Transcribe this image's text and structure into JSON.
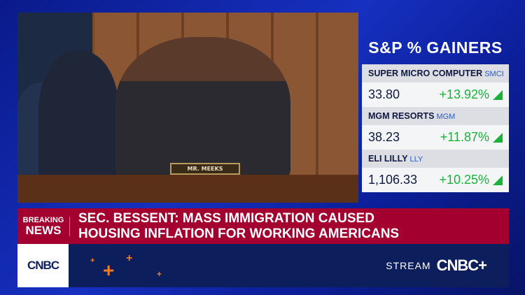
{
  "video": {
    "nameplate": "MR. MEEKS"
  },
  "gainers": {
    "title": "S&P % GAINERS",
    "items": [
      {
        "name": "SUPER MICRO COMPUTER",
        "ticker": "SMCI",
        "price": "33.80",
        "change": "+13.92%"
      },
      {
        "name": "MGM RESORTS",
        "ticker": "MGM",
        "price": "38.23",
        "change": "+11.87%"
      },
      {
        "name": "ELI LILLY",
        "ticker": "LLY",
        "price": "1,106.33",
        "change": "+10.25%"
      }
    ],
    "up_color": "#19b33a"
  },
  "breaking": {
    "label_top": "BREAKING",
    "label_bottom": "NEWS",
    "headline_line1": "SEC. BESSENT: MASS IMMIGRATION CAUSED",
    "headline_line2": "HOUSING INFLATION FOR WORKING AMERICANS",
    "color": "#a3002f"
  },
  "footer": {
    "logo": "CNBC",
    "stream_label": "STREAM",
    "stream_brand": "CNBC+",
    "accent": "#f47a20"
  }
}
